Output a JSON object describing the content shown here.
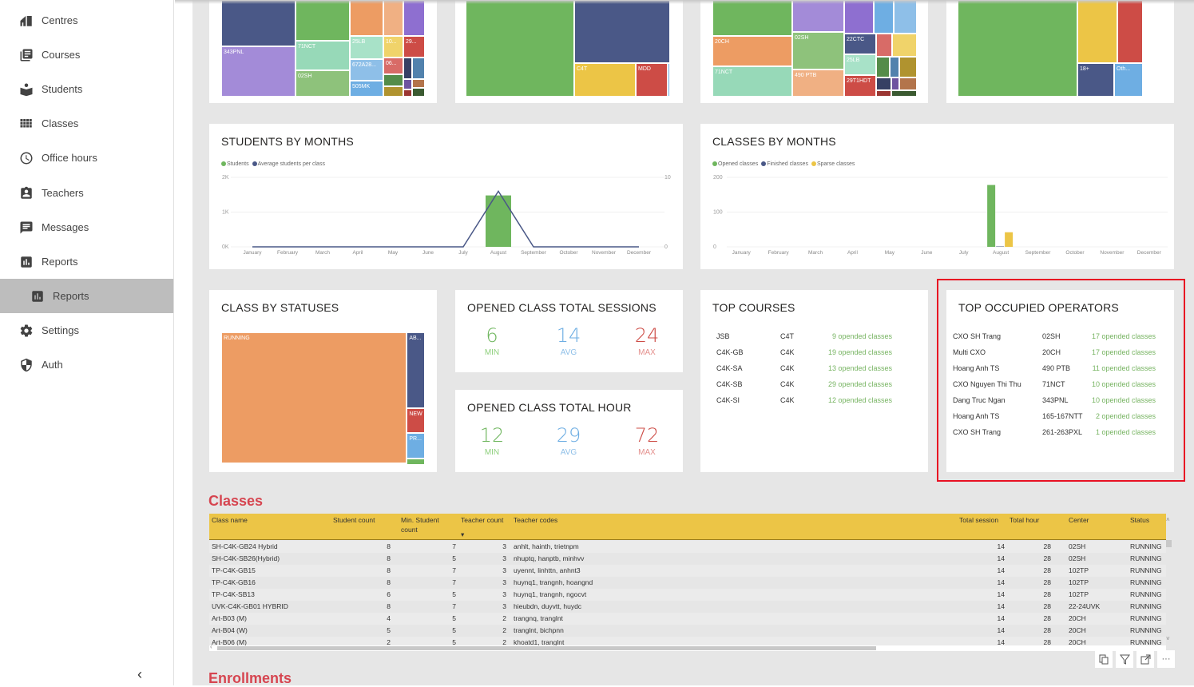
{
  "sidebar": {
    "items": [
      {
        "label": "Centres",
        "icon": "home-centres-icon"
      },
      {
        "label": "Courses",
        "icon": "library-books-icon"
      },
      {
        "label": "Students",
        "icon": "student-reading-icon"
      },
      {
        "label": "Classes",
        "icon": "grid-icon"
      },
      {
        "label": "Office hours",
        "icon": "clock-icon"
      },
      {
        "label": "Teachers",
        "icon": "badge-icon"
      },
      {
        "label": "Messages",
        "icon": "message-icon"
      },
      {
        "label": "Reports",
        "icon": "bar-chart-icon"
      },
      {
        "label": "Reports",
        "icon": "bar-chart-icon",
        "active": true,
        "sub": true
      },
      {
        "label": "Settings",
        "icon": "gear-icon"
      },
      {
        "label": "Auth",
        "icon": "shield-icon"
      }
    ],
    "collapse_glyph": "‹"
  },
  "treemaps_top": {
    "t1": [
      "343PNL",
      "71NCT",
      "02SH",
      "25LB",
      "10...",
      "29...",
      "672A28...",
      "06...",
      "505MK"
    ],
    "t2": [
      "C4T",
      "MDD"
    ],
    "t3": [
      "20CH",
      "02SH",
      "22CTC",
      "71NCT",
      "25LB",
      "490 PTB",
      "29T1HDT"
    ],
    "t4": [
      "18+",
      "Oth..."
    ]
  },
  "students_by_months": {
    "title": "STUDENTS BY MONTHS",
    "legend": [
      {
        "label": "Students",
        "color": "#6fb65e"
      },
      {
        "label": "Average students per class",
        "color": "#4a5887"
      }
    ]
  },
  "classes_by_months": {
    "title": "CLASSES BY MONTHS",
    "legend": [
      {
        "label": "Opened classes",
        "color": "#6fb65e"
      },
      {
        "label": "Finished classes",
        "color": "#4a5887"
      },
      {
        "label": "Sparse classes",
        "color": "#ecc546"
      }
    ]
  },
  "chart_data": [
    {
      "type": "bar",
      "title": "STUDENTS BY MONTHS",
      "categories": [
        "January",
        "February",
        "March",
        "April",
        "May",
        "June",
        "July",
        "August",
        "September",
        "October",
        "November",
        "December"
      ],
      "series": [
        {
          "name": "Students",
          "kind": "bar",
          "axis": "left",
          "values": [
            0,
            0,
            0,
            0,
            0,
            0,
            0,
            1480,
            0,
            0,
            0,
            0
          ]
        },
        {
          "name": "Average students per class",
          "kind": "line",
          "axis": "right",
          "values": [
            0,
            0,
            0,
            0,
            0,
            0,
            0,
            8,
            0,
            0,
            0,
            0
          ]
        }
      ],
      "y_left": {
        "ticks": [
          "0K",
          "1K",
          "2K"
        ],
        "range": [
          0,
          2000
        ]
      },
      "y_right": {
        "ticks": [
          "0",
          "10"
        ],
        "range": [
          0,
          10
        ]
      },
      "legend": "top-left",
      "grid": true
    },
    {
      "type": "bar",
      "title": "CLASSES BY MONTHS",
      "categories": [
        "January",
        "February",
        "March",
        "April",
        "May",
        "June",
        "July",
        "August",
        "September",
        "October",
        "November",
        "December"
      ],
      "series": [
        {
          "name": "Opened classes",
          "values": [
            0,
            0,
            0,
            0,
            0,
            0,
            0,
            178,
            0,
            0,
            0,
            0
          ]
        },
        {
          "name": "Finished classes",
          "values": [
            0,
            0,
            0,
            0,
            0,
            0,
            0,
            2,
            0,
            0,
            0,
            0
          ]
        },
        {
          "name": "Sparse classes",
          "values": [
            0,
            0,
            0,
            0,
            0,
            0,
            0,
            42,
            0,
            0,
            0,
            0
          ]
        }
      ],
      "y": {
        "ticks": [
          "0",
          "100",
          "200"
        ],
        "range": [
          0,
          200
        ]
      },
      "legend": "top-left",
      "grid": true
    },
    {
      "type": "treemap",
      "title": "CLASS BY STATUSES",
      "labels": [
        "RUNNING",
        "AB...",
        "NEW",
        "PR...",
        ""
      ],
      "colors": [
        "#ed9c63",
        "#4a5887",
        "#cd4c46",
        "#6eaee3",
        "#6fb65e"
      ],
      "values": [
        160,
        9,
        3,
        3,
        0.6
      ]
    }
  ],
  "class_by_statuses": {
    "title": "CLASS BY STATUSES"
  },
  "sessions": {
    "title": "OPENED CLASS TOTAL SESSIONS",
    "min": "6",
    "avg": "14",
    "max": "24",
    "min_label": "MIN",
    "avg_label": "AVG",
    "max_label": "MAX"
  },
  "hours": {
    "title": "OPENED CLASS TOTAL HOUR",
    "min": "12",
    "avg": "29",
    "max": "72",
    "min_label": "MIN",
    "avg_label": "AVG",
    "max_label": "MAX"
  },
  "top_courses": {
    "title": "TOP COURSES",
    "rows": [
      {
        "name": "JSB",
        "program": "C4T",
        "count": "9 opended classes"
      },
      {
        "name": "C4K-GB",
        "program": "C4K",
        "count": "19 opended classes"
      },
      {
        "name": "C4K-SA",
        "program": "C4K",
        "count": "13 opended classes"
      },
      {
        "name": "C4K-SB",
        "program": "C4K",
        "count": "29 opended classes"
      },
      {
        "name": "C4K-SI",
        "program": "C4K",
        "count": "12 opended classes"
      }
    ]
  },
  "top_operators": {
    "title": "TOP OCCUPIED OPERATORS",
    "rows": [
      {
        "name": "CXO SH Trang",
        "center": "02SH",
        "count": "17 opended classes"
      },
      {
        "name": "Multi CXO",
        "center": "20CH",
        "count": "17 opended classes"
      },
      {
        "name": "Hoang Anh TS",
        "center": "490 PTB",
        "count": "11 opended classes"
      },
      {
        "name": "CXO Nguyen Thi Thu",
        "center": "71NCT",
        "count": "10 opended classes"
      },
      {
        "name": "Dang Truc Ngan",
        "center": "343PNL",
        "count": "10 opended classes"
      },
      {
        "name": "Hoang Anh TS",
        "center": "165-167NTT",
        "count": "2 opended classes"
      },
      {
        "name": "CXO SH Trang",
        "center": "261-263PXL",
        "count": "1 opended classes"
      }
    ]
  },
  "classes_section": {
    "title": "Classes",
    "headers": [
      "Class name",
      "Student count",
      "Min. Student count",
      "Teacher count",
      "Teacher codes",
      "Total session",
      "Total hour",
      "Center",
      "Status"
    ],
    "sort_indicator": "▾",
    "rows": [
      [
        "SH-C4K-GB24 Hybrid",
        "8",
        "7",
        "3",
        "anhlt, hainth, trietnpm",
        "14",
        "28",
        "02SH",
        "RUNNING"
      ],
      [
        "SH-C4K-SB26(Hybrid)",
        "8",
        "5",
        "3",
        "nhuptq, hanptb, minhvv",
        "14",
        "28",
        "02SH",
        "RUNNING"
      ],
      [
        "TP-C4K-GB15",
        "8",
        "7",
        "3",
        "uyennt, linhttn, anhnt3",
        "14",
        "28",
        "102TP",
        "RUNNING"
      ],
      [
        "TP-C4K-GB16",
        "8",
        "7",
        "3",
        "huynq1, trangnh, hoangnd",
        "14",
        "28",
        "102TP",
        "RUNNING"
      ],
      [
        "TP-C4K-SB13",
        "6",
        "5",
        "3",
        "huynq1, trangnh, ngocvt",
        "14",
        "28",
        "102TP",
        "RUNNING"
      ],
      [
        "UVK-C4K-GB01 HYBRID",
        "8",
        "7",
        "3",
        "hieubdn, duyvtt, huydc",
        "14",
        "28",
        "22-24UVK",
        "RUNNING"
      ],
      [
        "Art-B03 (M)",
        "4",
        "5",
        "2",
        "trangnq, tranglnt",
        "14",
        "28",
        "20CH",
        "RUNNING"
      ],
      [
        "Art-B04 (W)",
        "5",
        "5",
        "2",
        "tranglnt, bichpnn",
        "14",
        "28",
        "20CH",
        "RUNNING"
      ],
      [
        "Art-B06 (M)",
        "2",
        "5",
        "2",
        "khoatd1, tranglnt",
        "14",
        "28",
        "20CH",
        "RUNNING"
      ]
    ]
  },
  "enrollments_section": {
    "title": "Enrollments"
  },
  "visual_tools": [
    "copy-icon",
    "filter-icon",
    "focus-mode-icon",
    "more-options-icon"
  ],
  "colors": {
    "green": "#6fb65e",
    "navy": "#4a5887",
    "yellow": "#ecc546",
    "red": "#cd4c46",
    "orange": "#ed9c63",
    "blue": "#6eaee3",
    "section_title": "#d64550",
    "highlight_border": "#e81123"
  }
}
